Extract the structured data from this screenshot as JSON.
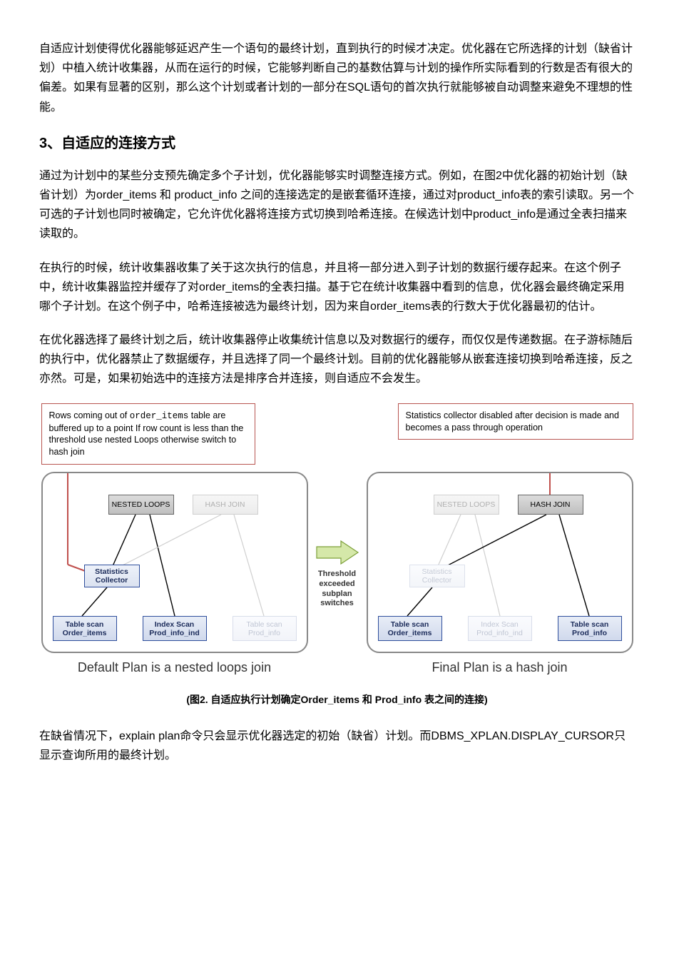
{
  "colors": {
    "heading": "#00a650",
    "text": "#000000",
    "callout_border": "#b85450",
    "panel_border": "#888888",
    "leaf_border": "#2e4e9c",
    "leaf_text": "#1b2b5a",
    "faded": "#c0c6d4",
    "arrow_fill": "#d5e8a9",
    "arrow_stroke": "#7da03a",
    "red_line": "#c0504d"
  },
  "paragraphs": {
    "intro": "自适应计划使得优化器能够延迟产生一个语句的最终计划，直到执行的时候才决定。优化器在它所选择的计划（缺省计划）中植入统计收集器，从而在运行的时候，它能够判断自己的基数估算与计划的操作所实际看到的行数是否有很大的偏差。如果有显著的区别，那么这个计划或者计划的一部分在SQL语句的首次执行就能够被自动调整来避免不理想的性能。",
    "p1": "通过为计划中的某些分支预先确定多个子计划，优化器能够实时调整连接方式。例如，在图2中优化器的初始计划（缺省计划）为order_items 和 product_info 之间的连接选定的是嵌套循环连接，通过对product_info表的索引读取。另一个可选的子计划也同时被确定，它允许优化器将连接方式切换到哈希连接。在候选计划中product_info是通过全表扫描来读取的。",
    "p2": "在执行的时候，统计收集器收集了关于这次执行的信息，并且将一部分进入到子计划的数据行缓存起来。在这个例子中，统计收集器监控并缓存了对order_items的全表扫描。基于它在统计收集器中看到的信息，优化器会最终确定采用哪个子计划。在这个例子中，哈希连接被选为最终计划，因为来自order_items表的行数大于优化器最初的估计。",
    "p3": "在优化器选择了最终计划之后，统计收集器停止收集统计信息以及对数据行的缓存，而仅仅是传递数据。在子游标随后的执行中，优化器禁止了数据缓存，并且选择了同一个最终计划。目前的优化器能够从嵌套连接切换到哈希连接，反之亦然。可是，如果初始选中的连接方法是排序合并连接，则自适应不会发生。",
    "p_after": "在缺省情况下，explain plan命令只会显示优化器选定的初始（缺省）计划。而DBMS_XPLAN.DISPLAY_CURSOR只显示查询所用的最终计划。"
  },
  "heading": "3、自适应的连接方式",
  "figure": {
    "caption": "(图2. 自适应执行计划确定Order_items 和 Prod_info 表之间的连接)",
    "left_callout_html": "Rows coming out of <code>order_items</code> table are buffered up to a point  If row count is less than the threshold use nested Loops otherwise switch to hash join",
    "right_callout": "Statistics collector disabled after decision is made and becomes a pass through operation",
    "middle_text": "Threshold exceeded subplan switches",
    "left_plan": {
      "caption": "Default Plan is a nested loops join",
      "nested_label": "NESTED LOOPS",
      "hash_label": "HASH JOIN",
      "stats_label": "Statistics Collector",
      "leaf1": "Table scan Order_items",
      "leaf2": "Index Scan Prod_info_ind",
      "leaf3": "Table scan Prod_info",
      "hash_faded": true,
      "leaf3_faded": true,
      "stats_faded": false
    },
    "right_plan": {
      "caption": "Final Plan is a hash join",
      "nested_label": "NESTED LOOPS",
      "hash_label": "HASH JOIN",
      "stats_label": "Statistics Collector",
      "leaf1": "Table scan Order_items",
      "leaf2": "Index Scan Prod_info_ind",
      "leaf3": "Table scan Prod_info",
      "nested_faded": true,
      "leaf2_faded": true,
      "stats_faded": true
    }
  }
}
